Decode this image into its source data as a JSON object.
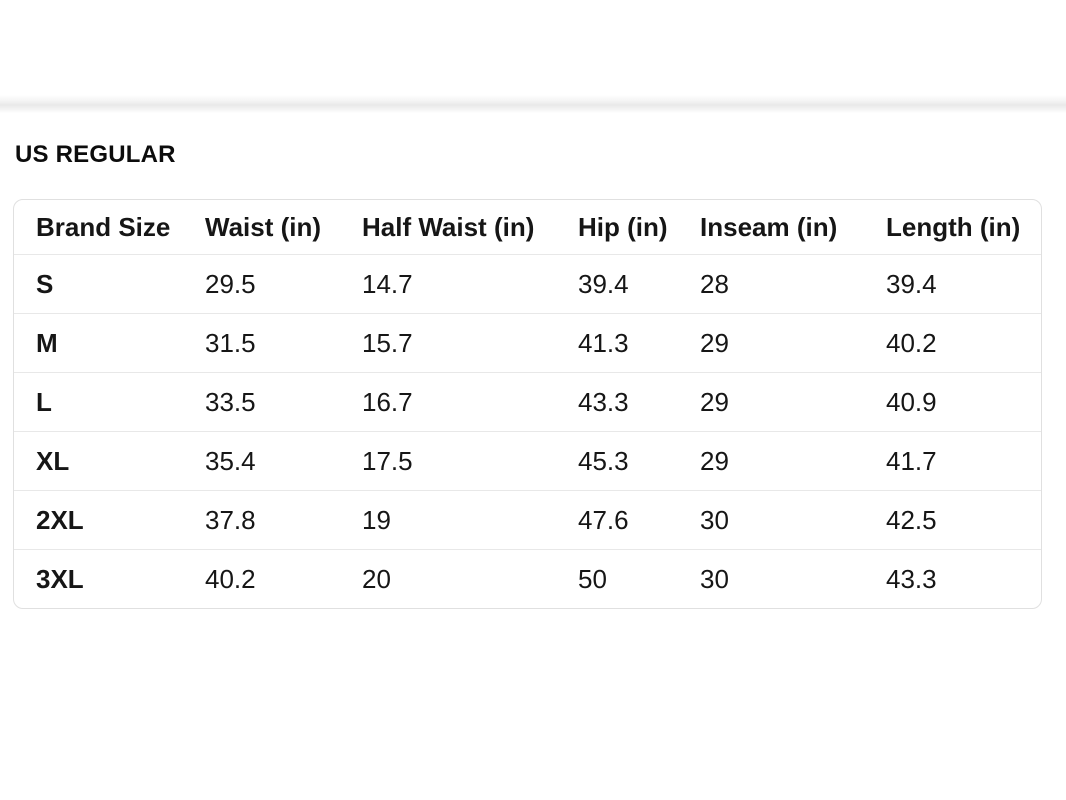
{
  "page": {
    "background_color": "#ffffff",
    "text_color": "#161616",
    "card_border_color": "#e0e0e0",
    "row_divider_color": "#e8e8e8",
    "top_divider_shadow_color": "#e9e9e9"
  },
  "section": {
    "title": "US REGULAR"
  },
  "size_table": {
    "columns": [
      "Brand Size",
      "Waist (in)",
      "Half Waist (in)",
      "Hip (in)",
      "Inseam (in)",
      "Length (in)"
    ],
    "rows": [
      {
        "brand_size": "S",
        "values": [
          "29.5",
          "14.7",
          "39.4",
          "28",
          "39.4"
        ]
      },
      {
        "brand_size": "M",
        "values": [
          "31.5",
          "15.7",
          "41.3",
          "29",
          "40.2"
        ]
      },
      {
        "brand_size": "L",
        "values": [
          "33.5",
          "16.7",
          "43.3",
          "29",
          "40.9"
        ]
      },
      {
        "brand_size": "XL",
        "values": [
          "35.4",
          "17.5",
          "45.3",
          "29",
          "41.7"
        ]
      },
      {
        "brand_size": "2XL",
        "values": [
          "37.8",
          "19",
          "47.6",
          "30",
          "42.5"
        ]
      },
      {
        "brand_size": "3XL",
        "values": [
          "40.2",
          "20",
          "50",
          "30",
          "43.3"
        ]
      }
    ]
  }
}
